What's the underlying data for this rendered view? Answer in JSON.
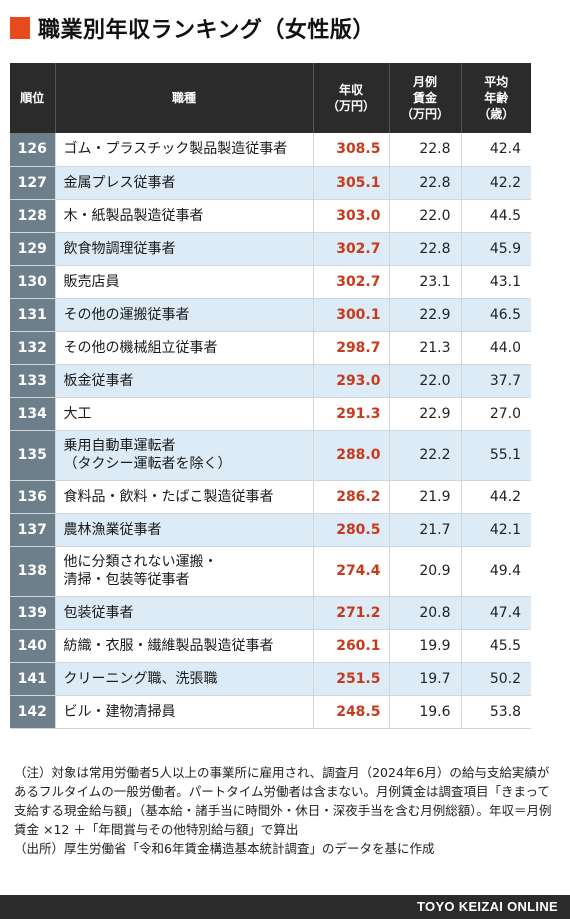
{
  "title": "職業別年収ランキング（女性版）",
  "headers": {
    "rank": "順位",
    "job": "職種",
    "income": [
      "年収",
      "（万円）"
    ],
    "wage": [
      "月例",
      "賃金",
      "（万円）"
    ],
    "age": [
      "平均",
      "年齢",
      "（歳）"
    ]
  },
  "rows": [
    {
      "rank": "126",
      "job": [
        "ゴム・プラスチック製品製造従事者"
      ],
      "income": "308.5",
      "wage": "22.8",
      "age": "42.4"
    },
    {
      "rank": "127",
      "job": [
        "金属プレス従事者"
      ],
      "income": "305.1",
      "wage": "22.8",
      "age": "42.2"
    },
    {
      "rank": "128",
      "job": [
        "木・紙製品製造従事者"
      ],
      "income": "303.0",
      "wage": "22.0",
      "age": "44.5"
    },
    {
      "rank": "129",
      "job": [
        "飲食物調理従事者"
      ],
      "income": "302.7",
      "wage": "22.8",
      "age": "45.9"
    },
    {
      "rank": "130",
      "job": [
        "販売店員"
      ],
      "income": "302.7",
      "wage": "23.1",
      "age": "43.1"
    },
    {
      "rank": "131",
      "job": [
        "その他の運搬従事者"
      ],
      "income": "300.1",
      "wage": "22.9",
      "age": "46.5"
    },
    {
      "rank": "132",
      "job": [
        "その他の機械組立従事者"
      ],
      "income": "298.7",
      "wage": "21.3",
      "age": "44.0"
    },
    {
      "rank": "133",
      "job": [
        "板金従事者"
      ],
      "income": "293.0",
      "wage": "22.0",
      "age": "37.7"
    },
    {
      "rank": "134",
      "job": [
        "大工"
      ],
      "income": "291.3",
      "wage": "22.9",
      "age": "27.0"
    },
    {
      "rank": "135",
      "job": [
        "乗用自動車運転者",
        "（タクシー運転者を除く）"
      ],
      "income": "288.0",
      "wage": "22.2",
      "age": "55.1"
    },
    {
      "rank": "136",
      "job": [
        "食料品・飲料・たばこ製造従事者"
      ],
      "income": "286.2",
      "wage": "21.9",
      "age": "44.2"
    },
    {
      "rank": "137",
      "job": [
        "農林漁業従事者"
      ],
      "income": "280.5",
      "wage": "21.7",
      "age": "42.1"
    },
    {
      "rank": "138",
      "job": [
        "他に分類されない運搬・",
        "清掃・包装等従事者"
      ],
      "income": "274.4",
      "wage": "20.9",
      "age": "49.4"
    },
    {
      "rank": "139",
      "job": [
        "包装従事者"
      ],
      "income": "271.2",
      "wage": "20.8",
      "age": "47.4"
    },
    {
      "rank": "140",
      "job": [
        "紡織・衣服・繊維製品製造従事者"
      ],
      "income": "260.1",
      "wage": "19.9",
      "age": "45.5"
    },
    {
      "rank": "141",
      "job": [
        "クリーニング職、洗張職"
      ],
      "income": "251.5",
      "wage": "19.7",
      "age": "50.2"
    },
    {
      "rank": "142",
      "job": [
        "ビル・建物清掃員"
      ],
      "income": "248.5",
      "wage": "19.6",
      "age": "53.8"
    }
  ],
  "notes": [
    "（注）対象は常用労働者5人以上の事業所に雇用され、調査月（2024年6月）の給与支給実績があるフルタイムの一般労働者。パートタイム労働者は含まない。月例賃金は調査項目「きまって支給する現金給与額」（基本給・諸手当に時間外・休日・深夜手当を含む月例総額）。年収＝月例賃金 ×12 ＋「年間賞与その他特別給与額」で算出",
    "（出所）厚生労働省「令和6年賃金構造基本統計調査」のデータを基に作成"
  ],
  "footer": "TOYO KEIZAI ONLINE",
  "colors": {
    "accent": "#e8491e",
    "header_bg": "#2b2b2b",
    "rank_bg": "#6e7f8c",
    "row_alt": "#dcebf6",
    "income_text": "#c93a1c"
  }
}
